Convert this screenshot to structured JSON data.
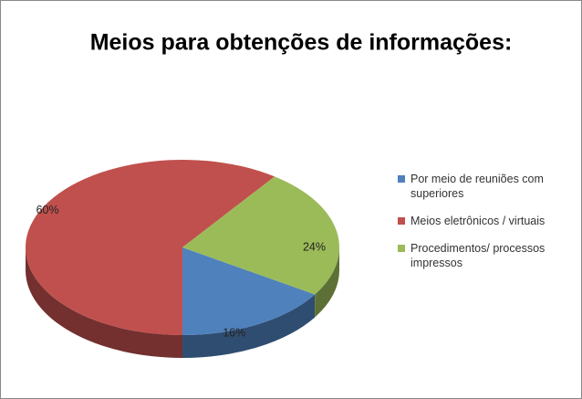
{
  "chart_data": {
    "type": "pie",
    "title": "Meios para obtenções de informações:",
    "categories": [
      "Por meio de reuniões com superiores",
      "Meios eletrônicos / virtuais",
      "Procedimentos/ processos impressos"
    ],
    "values": [
      16,
      60,
      24
    ],
    "value_labels": [
      "16%",
      "60%",
      "24%"
    ],
    "colors": [
      "#4f81bd",
      "#c0504d",
      "#9bbb59"
    ],
    "legend": "right"
  }
}
